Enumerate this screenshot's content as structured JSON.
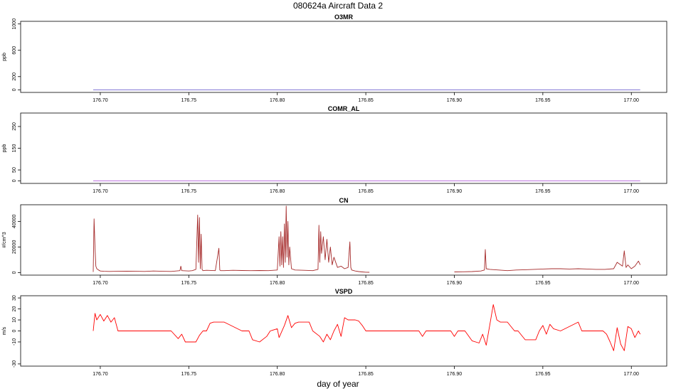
{
  "figure": {
    "title": "080624a   Aircraft Data 2",
    "xlabel": "day of year"
  },
  "chart_data": [
    {
      "type": "line",
      "title": "O3MR",
      "ylabel": "ppb",
      "xlim": [
        176.655,
        177.02
      ],
      "ylim": [
        -40,
        1040
      ],
      "yticks": [
        0,
        200,
        600,
        1000
      ],
      "xticks": [
        176.7,
        176.75,
        176.8,
        176.85,
        176.9,
        176.95,
        177.0
      ],
      "xtick_labels": [
        "176.70",
        "176.75",
        "176.80",
        "176.85",
        "176.90",
        "176.95",
        "177.00"
      ],
      "series": [
        {
          "color": "#6a5acd",
          "kind": "constant",
          "x_range": [
            176.696,
            177.005
          ],
          "value": 0
        }
      ]
    },
    {
      "type": "line",
      "title": "COMR_AL",
      "ylabel": "ppb",
      "xlim": [
        176.655,
        177.02
      ],
      "ylim": [
        -12,
        312
      ],
      "yticks": [
        0,
        50,
        150,
        250
      ],
      "xticks": [
        176.7,
        176.75,
        176.8,
        176.85,
        176.9,
        176.95,
        177.0
      ],
      "xtick_labels": [
        "176.70",
        "176.75",
        "176.80",
        "176.85",
        "176.90",
        "176.95",
        "177.00"
      ],
      "series": [
        {
          "color": "#b05ad8",
          "kind": "constant",
          "x_range": [
            176.696,
            177.005
          ],
          "value": 0
        }
      ]
    },
    {
      "type": "line",
      "title": "CN",
      "ylabel": "#/cm^3",
      "xlim": [
        176.655,
        177.02
      ],
      "ylim": [
        -2000,
        53000
      ],
      "yticks": [
        0,
        20000,
        40000
      ],
      "xticks": [
        176.7,
        176.75,
        176.8,
        176.85,
        176.9,
        176.95,
        177.0
      ],
      "xtick_labels": [
        "176.70",
        "176.75",
        "176.80",
        "176.85",
        "176.90",
        "176.95",
        "177.00"
      ],
      "series": [
        {
          "color": "#a52a2a",
          "kind": "points",
          "x": [
            176.696,
            176.6965,
            176.697,
            176.6975,
            176.698,
            176.699,
            176.7,
            176.702,
            176.705,
            176.71,
            176.715,
            176.72,
            176.725,
            176.73,
            176.735,
            176.74,
            176.745,
            176.7455,
            176.746,
            176.75,
            176.752,
            176.754,
            176.755,
            176.7555,
            176.756,
            176.7565,
            176.757,
            176.7575,
            176.758,
            176.76,
            176.765,
            176.767,
            176.7675,
            176.768,
            176.77,
            176.775,
            176.78,
            176.785,
            176.79,
            176.795,
            176.8,
            176.801,
            176.8015,
            176.802,
            176.8025,
            176.803,
            176.8035,
            176.804,
            176.8045,
            176.805,
            176.8055,
            176.806,
            176.8065,
            176.807,
            176.808,
            176.81,
            176.815,
            176.82,
            176.823,
            176.8235,
            176.824,
            176.8245,
            176.825,
            176.826,
            176.827,
            176.828,
            176.829,
            176.83,
            176.831,
            176.832,
            176.834,
            176.836,
            176.838,
            176.84,
            176.841,
            176.8415,
            176.842,
            176.844,
            176.846,
            176.848,
            176.85,
            176.852
          ],
          "y": [
            500,
            42000,
            20000,
            5000,
            3000,
            2000,
            1200,
            1000,
            900,
            1000,
            1100,
            1000,
            900,
            1200,
            1000,
            900,
            1500,
            5000,
            1500,
            1200,
            1500,
            2500,
            45000,
            8000,
            43000,
            3000,
            30000,
            2500,
            1500,
            1800,
            1500,
            19000,
            2000,
            1500,
            1500,
            1800,
            1600,
            1500,
            1600,
            1500,
            2000,
            28000,
            5000,
            32000,
            6000,
            28000,
            4000,
            38000,
            8000,
            52000,
            12000,
            40000,
            6000,
            20000,
            3000,
            2000,
            1800,
            1500,
            2500,
            37000,
            8000,
            32000,
            15000,
            28000,
            10000,
            26000,
            8000,
            20000,
            6000,
            12000,
            4000,
            5000,
            3000,
            4000,
            24000,
            4000,
            2000,
            1200,
            800,
            500,
            300,
            200
          ]
        },
        {
          "color": "#a52a2a",
          "kind": "points",
          "x": [
            176.9,
            176.905,
            176.91,
            176.915,
            176.917,
            176.9175,
            176.918,
            176.92,
            176.925,
            176.93,
            176.935,
            176.94,
            176.945,
            176.95,
            176.955,
            176.96,
            176.965,
            176.97,
            176.975,
            176.98,
            176.985,
            176.99,
            176.992,
            176.995,
            176.996,
            176.997,
            176.998,
            177.0,
            177.002,
            177.004,
            177.005
          ],
          "y": [
            500,
            600,
            800,
            1200,
            2000,
            18000,
            3000,
            2500,
            2000,
            1500,
            2000,
            2200,
            2500,
            2800,
            3000,
            3000,
            2800,
            3000,
            2800,
            2500,
            2500,
            3000,
            8000,
            5000,
            17000,
            4000,
            6000,
            3000,
            5000,
            9000,
            6000
          ]
        }
      ]
    },
    {
      "type": "line",
      "title": "VSPD",
      "ylabel": "m/s",
      "xlim": [
        176.655,
        177.02
      ],
      "ylim": [
        -32,
        32
      ],
      "yticks": [
        -30,
        -10,
        0,
        10,
        20,
        30
      ],
      "xticks": [
        176.7,
        176.75,
        176.8,
        176.85,
        176.9,
        176.95,
        177.0
      ],
      "xtick_labels": [
        "176.70",
        "176.75",
        "176.80",
        "176.85",
        "176.90",
        "176.95",
        "177.00"
      ],
      "series": [
        {
          "color": "#ff0000",
          "kind": "points",
          "x": [
            176.696,
            176.697,
            176.698,
            176.7,
            176.702,
            176.704,
            176.706,
            176.708,
            176.71,
            176.72,
            176.73,
            176.74,
            176.744,
            176.746,
            176.748,
            176.754,
            176.756,
            176.758,
            176.76,
            176.762,
            176.764,
            176.766,
            176.77,
            176.78,
            176.784,
            176.786,
            176.79,
            176.794,
            176.796,
            176.8,
            176.801,
            176.804,
            176.806,
            176.808,
            176.81,
            176.812,
            176.818,
            176.82,
            176.824,
            176.826,
            176.828,
            176.83,
            176.832,
            176.834,
            176.836,
            176.838,
            176.84,
            176.844,
            176.846,
            176.848,
            176.85,
            176.86,
            176.87,
            176.88,
            176.882,
            176.884,
            176.89,
            176.898,
            176.9,
            176.902,
            176.904,
            176.906,
            176.91,
            176.914,
            176.916,
            176.918,
            176.92,
            176.922,
            176.924,
            176.926,
            176.93,
            176.934,
            176.936,
            176.94,
            176.946,
            176.948,
            176.95,
            176.952,
            176.954,
            176.956,
            176.96,
            176.97,
            176.972,
            176.974,
            176.98,
            176.984,
            176.986,
            176.988,
            176.99,
            176.992,
            176.994,
            176.996,
            176.998,
            177.0,
            177.002,
            177.004,
            177.005
          ],
          "y": [
            0,
            16,
            10,
            15,
            9,
            14,
            8,
            12,
            0,
            0,
            0,
            0,
            -7,
            -3,
            -10,
            -10,
            -4,
            0,
            0,
            7,
            8,
            8,
            8,
            0,
            0,
            -8,
            -10,
            -5,
            0,
            2,
            -6,
            5,
            14,
            3,
            7,
            8,
            8,
            0,
            -5,
            -10,
            -3,
            -8,
            0,
            6,
            -5,
            12,
            10,
            10,
            9,
            5,
            0,
            0,
            0,
            0,
            -5,
            0,
            0,
            0,
            -5,
            0,
            0,
            0,
            -9,
            -11,
            -3,
            -13,
            5,
            24,
            10,
            8,
            8,
            0,
            0,
            -8,
            -8,
            0,
            5,
            -3,
            6,
            2,
            0,
            8,
            0,
            0,
            0,
            0,
            -3,
            -10,
            -18,
            3,
            -12,
            -18,
            4,
            2,
            -6,
            0,
            -3
          ]
        }
      ]
    }
  ]
}
